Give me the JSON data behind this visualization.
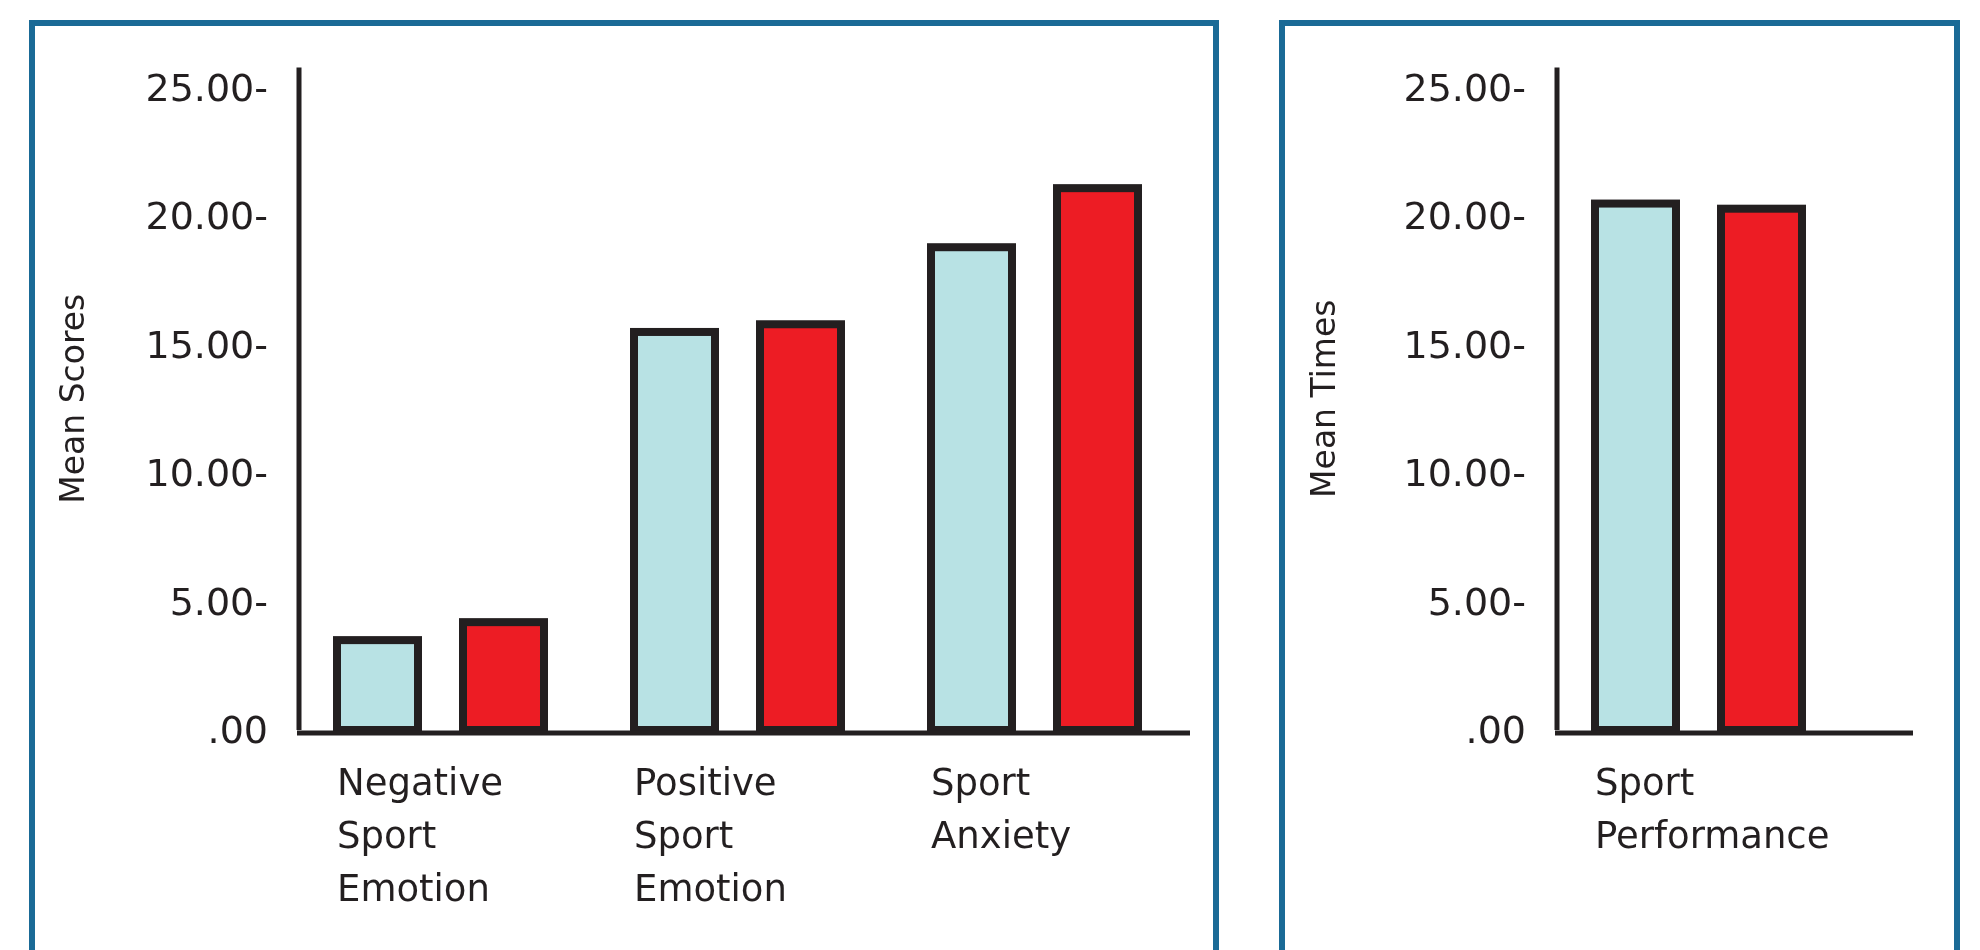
{
  "chart_data": [
    {
      "type": "bar",
      "ylabel": "Mean Scores",
      "categories": [
        "Negative\nSport\nEmotion",
        "Positive\nSport\nEmotion",
        "Sport\nAnxiety"
      ],
      "ylim": [
        0,
        25.8
      ],
      "yticks": [
        {
          "value": 0,
          "label": ".00"
        },
        {
          "value": 5,
          "label": "5.00-"
        },
        {
          "value": 10,
          "label": "10.00-"
        },
        {
          "value": 15,
          "label": "15.00-"
        },
        {
          "value": 20,
          "label": "20.00-"
        },
        {
          "value": 25,
          "label": "25.00-"
        }
      ],
      "series": [
        {
          "color": "#b8e2e4",
          "values": [
            3.5,
            15.5,
            18.8
          ]
        },
        {
          "color": "#ed1c24",
          "values": [
            4.2,
            15.8,
            21.1
          ]
        }
      ]
    },
    {
      "type": "bar",
      "ylabel": "Mean Times",
      "categories": [
        "Sport\nPerformance"
      ],
      "ylim": [
        0,
        25.8
      ],
      "yticks": [
        {
          "value": 0,
          "label": ".00"
        },
        {
          "value": 5,
          "label": "5.00-"
        },
        {
          "value": 10,
          "label": "10.00-"
        },
        {
          "value": 15,
          "label": "15.00-"
        },
        {
          "value": 20,
          "label": "20.00-"
        },
        {
          "value": 25,
          "label": "25.00-"
        }
      ],
      "series": [
        {
          "color": "#b8e2e4",
          "values": [
            20.5
          ]
        },
        {
          "color": "#ed1c24",
          "values": [
            20.3
          ]
        }
      ]
    }
  ]
}
